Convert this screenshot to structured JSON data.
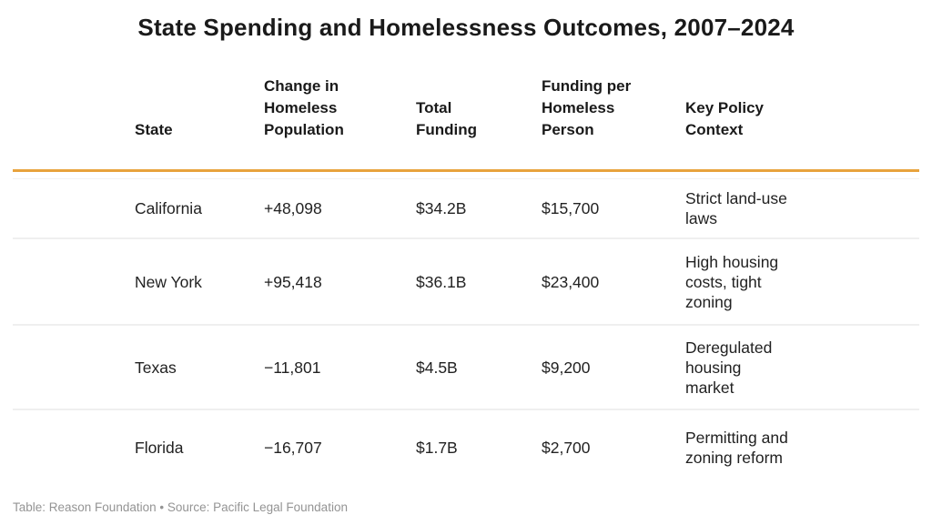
{
  "title": "State Spending and Homelessness Outcomes, 2007–2024",
  "colors": {
    "accent_rule": "#E8A33D",
    "row_divider": "#EFEFEF",
    "text": "#1A1A1A",
    "footer_text": "#949494"
  },
  "table": {
    "headers": {
      "state": "State",
      "change": "Change in\nHomeless\nPopulation",
      "total": "Total\nFunding",
      "per_person": "Funding per\nHomeless\nPerson",
      "policy": "Key Policy\nContext"
    },
    "rows": [
      {
        "state": "California",
        "change": "+48,098",
        "total": "$34.2B",
        "per_person": "$15,700",
        "policy": "Strict land-use\nlaws"
      },
      {
        "state": "New York",
        "change": "+95,418",
        "total": "$36.1B",
        "per_person": "$23,400",
        "policy": "High housing\ncosts, tight\nzoning"
      },
      {
        "state": "Texas",
        "change": "−11,801",
        "total": "$4.5B",
        "per_person": "$9,200",
        "policy": "Deregulated\nhousing\nmarket"
      },
      {
        "state": "Florida",
        "change": "−16,707",
        "total": "$1.7B",
        "per_person": "$2,700",
        "policy": "Permitting and\nzoning reform"
      }
    ]
  },
  "footer": "Table: Reason Foundation • Source: Pacific Legal Foundation",
  "chart_data": {
    "type": "table",
    "title": "State Spending and Homelessness Outcomes, 2007–2024",
    "columns": [
      "State",
      "Change in Homeless Population",
      "Total Funding",
      "Funding per Homeless Person",
      "Key Policy Context"
    ],
    "rows": [
      [
        "California",
        "+48,098",
        "$34.2B",
        "$15,700",
        "Strict land-use laws"
      ],
      [
        "New York",
        "+95,418",
        "$36.1B",
        "$23,400",
        "High housing costs, tight zoning"
      ],
      [
        "Texas",
        "−11,801",
        "$4.5B",
        "$9,200",
        "Deregulated housing market"
      ],
      [
        "Florida",
        "−16,707",
        "$1.7B",
        "$2,700",
        "Permitting and zoning reform"
      ]
    ],
    "numeric_interpretation": {
      "change_in_homeless_population": [
        48098,
        95418,
        -11801,
        -16707
      ],
      "total_funding_billions_usd": [
        34.2,
        36.1,
        4.5,
        1.7
      ],
      "funding_per_homeless_person_usd": [
        15700,
        23400,
        9200,
        2700
      ]
    },
    "source": "Table: Reason Foundation • Source: Pacific Legal Foundation"
  }
}
